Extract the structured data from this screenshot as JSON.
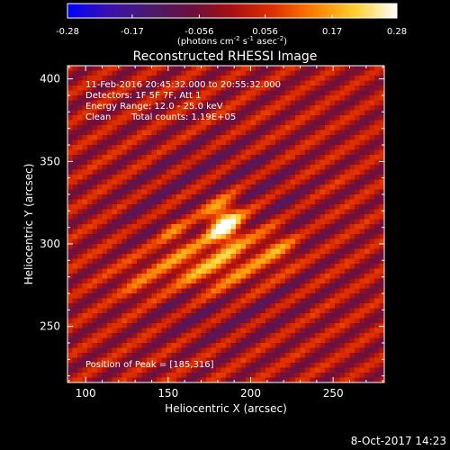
{
  "colorbar": {
    "ticks": [
      "-0.28",
      "-0.17",
      "-0.056",
      "0.056",
      "0.17",
      "0.28"
    ],
    "range": [
      -0.28,
      0.28
    ],
    "units_prefix": "(photons cm",
    "units_exp1": "-2",
    "units_mid": " s",
    "units_exp2": "-1",
    "units_tail": " asec",
    "units_exp3": "-2",
    "units_close": ")",
    "colors": [
      "#0000ff",
      "#3a10b0",
      "#4a1a6e",
      "#6a1040",
      "#a81010",
      "#e03000",
      "#ff8000",
      "#ffd030",
      "#ffffff"
    ]
  },
  "info": {
    "time_range": "11-Feb-2016 20:45:32.000 to 20:55:32.000",
    "detectors": "Detectors: 1F 5F 7F, Att 1",
    "energy_range": "Energy Range: 12.0 - 25.0 keV",
    "clean": "Clean",
    "total_counts": "Total counts: 1.19E+05",
    "peak_position": "Position of Peak = [185,316]"
  },
  "footer": {
    "date": "8-Oct-2017 14:23"
  },
  "chart_data": {
    "type": "heatmap",
    "title": "Reconstructed RHESSI Image",
    "xlabel": "Heliocentric X (arcsec)",
    "ylabel": "Heliocentric Y (arcsec)",
    "xlim": [
      89,
      281
    ],
    "ylim": [
      216,
      408
    ],
    "xticks": [
      100,
      150,
      200,
      250
    ],
    "yticks": [
      250,
      300,
      350,
      400
    ],
    "value_range": [
      -0.28,
      0.28
    ],
    "peak": {
      "x": 185,
      "y": 316,
      "value": 0.28
    },
    "sources": [
      {
        "x": 184,
        "y": 312,
        "sigma_x": 7,
        "sigma_y": 9,
        "value": 0.28
      },
      {
        "x": 172,
        "y": 287,
        "sigma_x": 28,
        "sigma_y": 10,
        "value": 0.12
      },
      {
        "x": 217,
        "y": 298,
        "sigma_x": 9,
        "sigma_y": 9,
        "value": 0.1
      },
      {
        "x": 134,
        "y": 275,
        "sigma_x": 9,
        "sigma_y": 8,
        "value": 0.07
      },
      {
        "x": 153,
        "y": 308,
        "sigma_x": 6,
        "sigma_y": 6,
        "value": 0.07
      }
    ],
    "grid": false
  }
}
